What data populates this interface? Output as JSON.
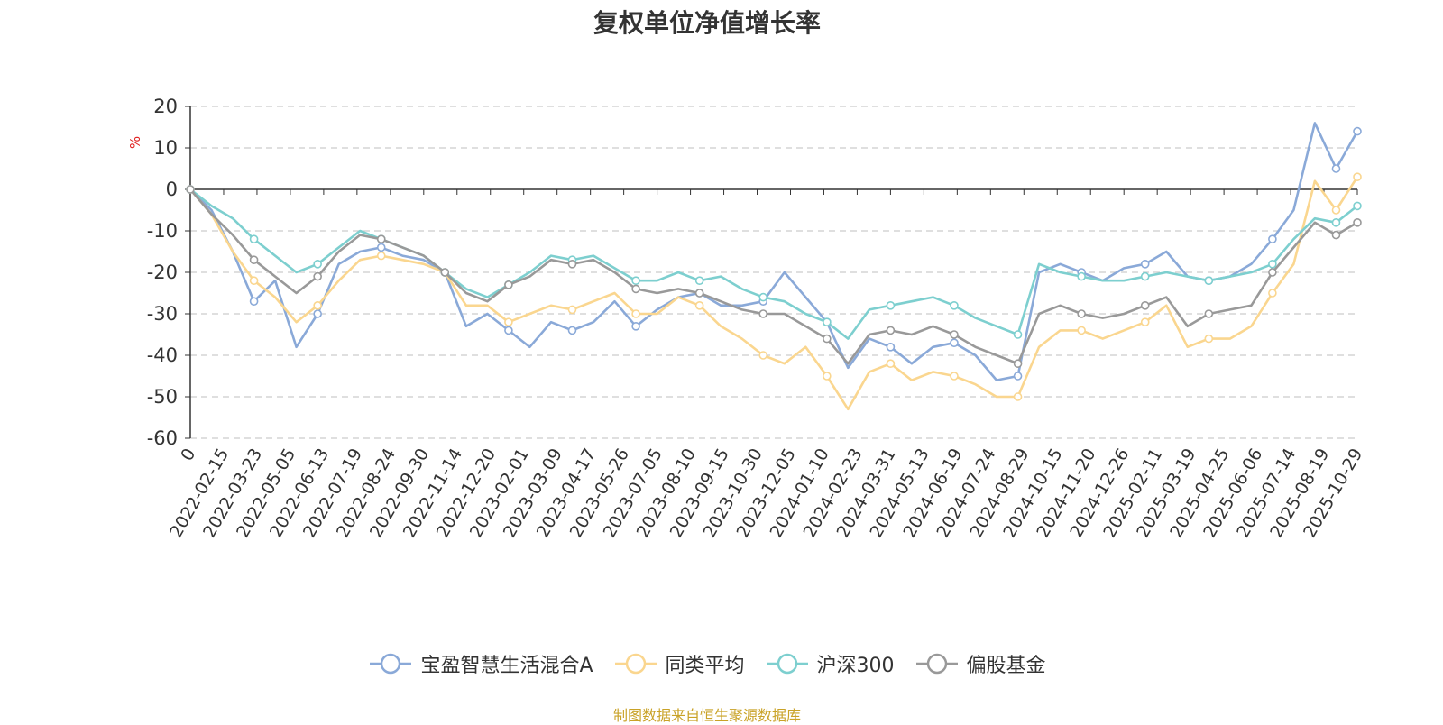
{
  "chart_data": {
    "type": "line",
    "title": "复权单位净值增长率",
    "ylabel": "%",
    "ylim": [
      -60,
      20
    ],
    "yticks": [
      20,
      10,
      0,
      -10,
      -20,
      -30,
      -40,
      -50,
      -60
    ],
    "x_ticks": [
      "0",
      "2022-02-15",
      "2022-03-23",
      "2022-05-05",
      "2022-06-13",
      "2022-07-19",
      "2022-08-24",
      "2022-09-30",
      "2022-11-14",
      "2022-12-20",
      "2023-02-01",
      "2023-03-09",
      "2023-04-17",
      "2023-05-26",
      "2023-07-05",
      "2023-08-10",
      "2023-09-15",
      "2023-10-30",
      "2023-12-05",
      "2024-01-10",
      "2024-02-23",
      "2024-03-31",
      "2024-05-13",
      "2024-06-19",
      "2024-07-24",
      "2024-08-29",
      "2024-10-15",
      "2024-11-20",
      "2024-12-26",
      "2025-02-11",
      "2025-03-19",
      "2025-04-25",
      "2025-06-06",
      "2025-07-14",
      "2025-08-19",
      "2025-10-29"
    ],
    "grid": "dashed horizontal",
    "legend_position": "bottom",
    "series": [
      {
        "name": "宝盈智慧生活混合A",
        "color": "#8aa9d8",
        "values": [
          0,
          -5,
          -15,
          -27,
          -22,
          -38,
          -30,
          -18,
          -15,
          -14,
          -16,
          -17,
          -20,
          -33,
          -30,
          -34,
          -38,
          -32,
          -34,
          -32,
          -27,
          -33,
          -29,
          -26,
          -25,
          -28,
          -28,
          -27,
          -20,
          -26,
          -32,
          -43,
          -36,
          -38,
          -42,
          -38,
          -37,
          -40,
          -46,
          -45,
          -20,
          -18,
          -20,
          -22,
          -19,
          -18,
          -15,
          -21,
          -22,
          -21,
          -18,
          -12,
          -5,
          16,
          5,
          14
        ]
      },
      {
        "name": "同类平均",
        "color": "#fad68f",
        "values": [
          0,
          -6,
          -15,
          -22,
          -26,
          -32,
          -28,
          -22,
          -17,
          -16,
          -17,
          -18,
          -20,
          -28,
          -28,
          -32,
          -30,
          -28,
          -29,
          -27,
          -25,
          -30,
          -30,
          -26,
          -28,
          -33,
          -36,
          -40,
          -42,
          -38,
          -45,
          -53,
          -44,
          -42,
          -46,
          -44,
          -45,
          -47,
          -50,
          -50,
          -38,
          -34,
          -34,
          -36,
          -34,
          -32,
          -28,
          -38,
          -36,
          -36,
          -33,
          -25,
          -18,
          2,
          -5,
          3
        ]
      },
      {
        "name": "沪深300",
        "color": "#7dcfcf",
        "values": [
          0,
          -4,
          -7,
          -12,
          -16,
          -20,
          -18,
          -14,
          -10,
          -12,
          -14,
          -16,
          -20,
          -24,
          -26,
          -23,
          -20,
          -16,
          -17,
          -16,
          -19,
          -22,
          -22,
          -20,
          -22,
          -21,
          -24,
          -26,
          -27,
          -30,
          -32,
          -36,
          -29,
          -28,
          -27,
          -26,
          -28,
          -31,
          -33,
          -35,
          -18,
          -20,
          -21,
          -22,
          -22,
          -21,
          -20,
          -21,
          -22,
          -21,
          -20,
          -18,
          -12,
          -7,
          -8,
          -4
        ]
      },
      {
        "name": "偏股基金",
        "color": "#999999",
        "values": [
          0,
          -6,
          -11,
          -17,
          -21,
          -25,
          -21,
          -15,
          -11,
          -12,
          -14,
          -16,
          -20,
          -25,
          -27,
          -23,
          -21,
          -17,
          -18,
          -17,
          -20,
          -24,
          -25,
          -24,
          -25,
          -27,
          -29,
          -30,
          -30,
          -33,
          -36,
          -42,
          -35,
          -34,
          -35,
          -33,
          -35,
          -38,
          -40,
          -42,
          -30,
          -28,
          -30,
          -31,
          -30,
          -28,
          -26,
          -33,
          -30,
          -29,
          -28,
          -20,
          -14,
          -8,
          -11,
          -8
        ]
      }
    ]
  },
  "source": "制图数据来自恒生聚源数据库"
}
